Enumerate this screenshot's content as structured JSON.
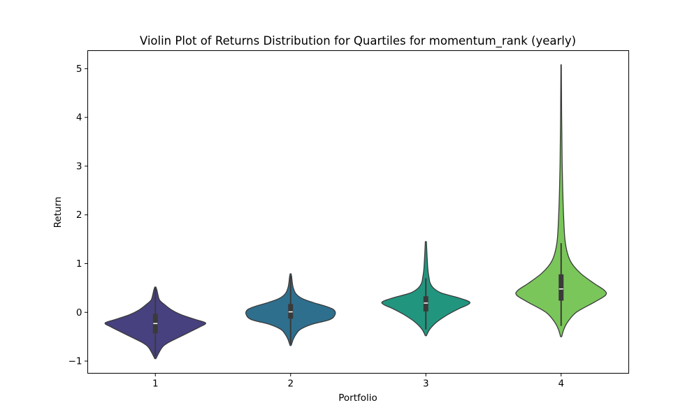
{
  "chart_data": {
    "type": "violin",
    "title": "Violin Plot of Returns Distribution for Quartiles for momentum_rank (yearly)",
    "xlabel": "Portfolio",
    "ylabel": "Return",
    "categories": [
      "1",
      "2",
      "3",
      "4"
    ],
    "ylim": [
      -1.25,
      5.37
    ],
    "yticks": [
      -1,
      0,
      1,
      2,
      3,
      4,
      5
    ],
    "ytick_labels": [
      "−1",
      "0",
      "1",
      "2",
      "3",
      "4",
      "5"
    ],
    "grid": false,
    "legend": "none",
    "series": [
      {
        "category": "1",
        "color": "#47417f",
        "whisker_low": -0.9,
        "whisker_high": 0.5,
        "q1": -0.43,
        "median": -0.23,
        "q3": -0.03,
        "profile": [
          [
            -0.95,
            0.01
          ],
          [
            -0.8,
            0.08
          ],
          [
            -0.7,
            0.14
          ],
          [
            -0.62,
            0.24
          ],
          [
            -0.52,
            0.42
          ],
          [
            -0.4,
            0.64
          ],
          [
            -0.3,
            0.82
          ],
          [
            -0.22,
            0.93
          ],
          [
            -0.15,
            0.75
          ],
          [
            -0.05,
            0.48
          ],
          [
            0.05,
            0.3
          ],
          [
            0.15,
            0.18
          ],
          [
            0.25,
            0.08
          ],
          [
            0.35,
            0.05
          ],
          [
            0.45,
            0.03
          ],
          [
            0.52,
            0.01
          ]
        ]
      },
      {
        "category": "2",
        "color": "#2e6f8e",
        "whisker_low": -0.65,
        "whisker_high": 0.75,
        "q1": -0.13,
        "median": 0.01,
        "q3": 0.17,
        "profile": [
          [
            -0.68,
            0.01
          ],
          [
            -0.55,
            0.05
          ],
          [
            -0.45,
            0.1
          ],
          [
            -0.35,
            0.18
          ],
          [
            -0.25,
            0.38
          ],
          [
            -0.15,
            0.72
          ],
          [
            -0.05,
            0.82
          ],
          [
            0.05,
            0.8
          ],
          [
            0.12,
            0.66
          ],
          [
            0.2,
            0.42
          ],
          [
            0.28,
            0.22
          ],
          [
            0.38,
            0.1
          ],
          [
            0.5,
            0.05
          ],
          [
            0.62,
            0.03
          ],
          [
            0.72,
            0.02
          ],
          [
            0.79,
            0.01
          ]
        ]
      },
      {
        "category": "3",
        "color": "#22957f",
        "whisker_low": -0.35,
        "whisker_high": 0.7,
        "q1": 0.02,
        "median": 0.19,
        "q3": 0.33,
        "profile": [
          [
            -0.48,
            0.01
          ],
          [
            -0.35,
            0.07
          ],
          [
            -0.2,
            0.2
          ],
          [
            -0.05,
            0.4
          ],
          [
            0.08,
            0.62
          ],
          [
            0.16,
            0.78
          ],
          [
            0.22,
            0.8
          ],
          [
            0.3,
            0.6
          ],
          [
            0.4,
            0.28
          ],
          [
            0.5,
            0.14
          ],
          [
            0.6,
            0.08
          ],
          [
            0.7,
            0.06
          ],
          [
            0.85,
            0.04
          ],
          [
            1.0,
            0.03
          ],
          [
            1.2,
            0.02
          ],
          [
            1.45,
            0.01
          ]
        ]
      },
      {
        "category": "4",
        "color": "#7ac65a",
        "whisker_low": -0.28,
        "whisker_high": 1.42,
        "q1": 0.24,
        "median": 0.48,
        "q3": 0.78,
        "profile": [
          [
            -0.5,
            0.01
          ],
          [
            -0.35,
            0.05
          ],
          [
            -0.2,
            0.12
          ],
          [
            0.0,
            0.28
          ],
          [
            0.2,
            0.6
          ],
          [
            0.35,
            0.82
          ],
          [
            0.45,
            0.8
          ],
          [
            0.6,
            0.6
          ],
          [
            0.8,
            0.36
          ],
          [
            1.0,
            0.2
          ],
          [
            1.2,
            0.12
          ],
          [
            1.5,
            0.07
          ],
          [
            2.0,
            0.045
          ],
          [
            2.5,
            0.03
          ],
          [
            3.0,
            0.02
          ],
          [
            3.5,
            0.015
          ],
          [
            4.0,
            0.01
          ],
          [
            4.5,
            0.007
          ],
          [
            5.08,
            0.004
          ]
        ]
      }
    ]
  }
}
